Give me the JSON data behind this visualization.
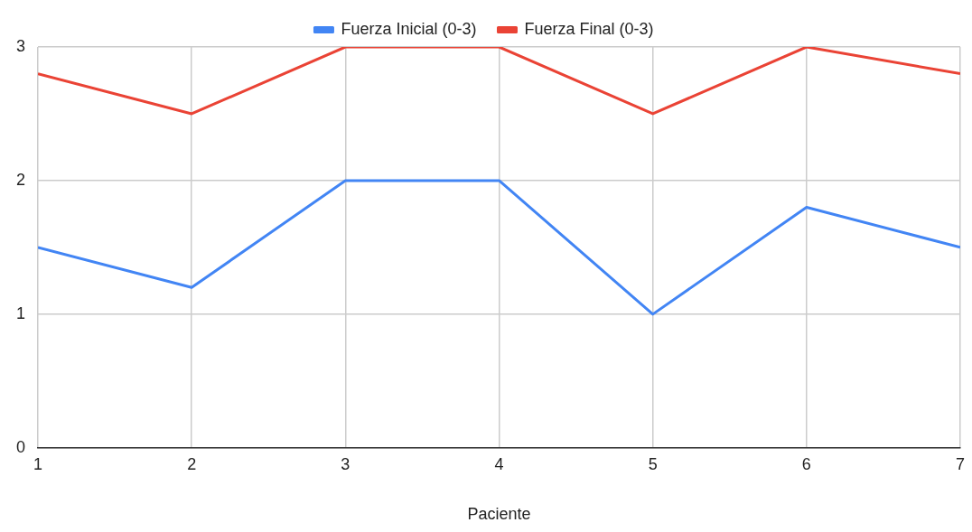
{
  "chart_data": {
    "type": "line",
    "xlabel": "Paciente",
    "x": [
      1,
      2,
      3,
      4,
      5,
      6,
      7
    ],
    "xlim": [
      1,
      7
    ],
    "xticks": [
      1,
      2,
      3,
      4,
      5,
      6,
      7
    ],
    "ylim": [
      0,
      3
    ],
    "yticks": [
      0,
      1,
      2,
      3
    ],
    "grid": true,
    "legend": "top",
    "marker": "none",
    "line_style": "solid",
    "series": [
      {
        "name": "Fuerza Inicial (0-3)",
        "color": "#4285f4",
        "values": [
          1.5,
          1.2,
          2,
          2,
          1,
          1.8,
          1.5
        ]
      },
      {
        "name": "Fuerza Final (0-3)",
        "color": "#ea4335",
        "values": [
          2.8,
          2.5,
          3,
          3,
          2.5,
          3,
          2.8
        ]
      }
    ]
  }
}
